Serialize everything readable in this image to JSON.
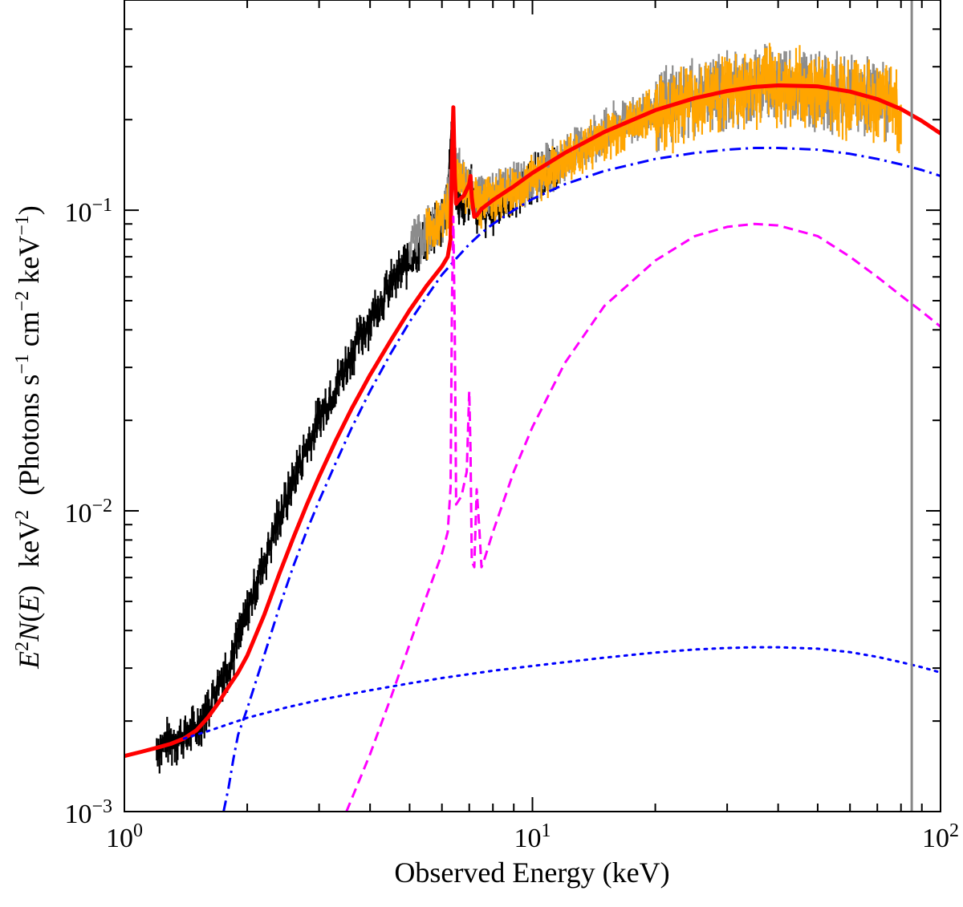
{
  "chart_data": {
    "type": "line",
    "scale": {
      "x": "log",
      "y": "log"
    },
    "xlim": [
      1,
      100
    ],
    "ylim": [
      0.001,
      0.5
    ],
    "xlabel": "Observed Energy   (keV)",
    "ylabel": {
      "E": "E",
      "N": "N",
      "exp2": "2",
      "open_paren": "(",
      "close_paren": ")",
      "unit": "keV",
      "rest_prefix": "(Photons s",
      "exp_m1": "−1",
      "cm": " cm",
      "exp_m2": "−2",
      "kev": " keV",
      "close": ")"
    },
    "x_ticks": [
      {
        "value": 1,
        "base": "10",
        "exp": "0"
      },
      {
        "value": 10,
        "base": "10",
        "exp": "1"
      },
      {
        "value": 100,
        "base": "10",
        "exp": "2"
      }
    ],
    "y_ticks": [
      {
        "value": 0.001,
        "base": "10",
        "exp": "−3"
      },
      {
        "value": 0.01,
        "base": "10",
        "exp": "−2"
      },
      {
        "value": 0.1,
        "base": "10",
        "exp": "−1"
      }
    ],
    "vertical_line": {
      "x": 85,
      "color": "#888888"
    },
    "series": [
      {
        "name": "data-soft (black)",
        "kind": "data",
        "color": "#000000",
        "x": [
          1.2,
          1.25,
          1.3,
          1.35,
          1.4,
          1.45,
          1.5,
          1.55,
          1.6,
          1.65,
          1.7,
          1.75,
          1.8,
          1.85,
          1.9,
          1.95,
          2.0,
          2.1,
          2.2,
          2.3,
          2.4,
          2.5,
          2.6,
          2.7,
          2.8,
          2.9,
          3.0,
          3.2,
          3.4,
          3.6,
          3.8,
          4.0,
          4.3,
          4.6,
          5.0,
          5.3,
          5.6,
          5.9,
          6.1,
          6.3,
          6.4,
          6.5,
          6.6,
          6.8,
          7.0,
          7.1,
          7.3,
          7.6,
          8.0,
          8.5,
          9.0,
          9.5,
          10.0,
          10.5,
          11.0,
          11.5
        ],
        "y": [
          0.00162,
          0.00168,
          0.00172,
          0.00176,
          0.00178,
          0.00185,
          0.0019,
          0.00205,
          0.0022,
          0.00245,
          0.0027,
          0.0029,
          0.0031,
          0.0034,
          0.0038,
          0.0041,
          0.0046,
          0.0057,
          0.0068,
          0.0082,
          0.0096,
          0.011,
          0.0128,
          0.0146,
          0.0165,
          0.0182,
          0.0203,
          0.0243,
          0.0285,
          0.0335,
          0.0385,
          0.0438,
          0.0515,
          0.059,
          0.069,
          0.076,
          0.083,
          0.089,
          0.097,
          0.16,
          0.22,
          0.12,
          0.1,
          0.102,
          0.113,
          0.125,
          0.096,
          0.097,
          0.101,
          0.108,
          0.115,
          0.121,
          0.127,
          0.133,
          0.138,
          0.142
        ]
      },
      {
        "name": "data-hard-A (grey)",
        "kind": "data",
        "color": "#8c8c8c",
        "x": [
          5.0,
          5.5,
          6.0,
          6.5,
          7.0,
          7.5,
          8.0,
          9.0,
          10.0,
          11.0,
          12.0,
          13.0,
          15.0,
          17.0,
          20.0,
          23.0,
          26.0,
          30.0,
          35.0,
          40.0,
          45.0,
          50.0,
          55.0,
          60.0,
          65.0,
          70.0,
          75.0
        ],
        "y": [
          0.078,
          0.085,
          0.093,
          0.14,
          0.12,
          0.11,
          0.113,
          0.121,
          0.13,
          0.14,
          0.151,
          0.163,
          0.182,
          0.2,
          0.218,
          0.232,
          0.244,
          0.255,
          0.263,
          0.266,
          0.263,
          0.258,
          0.252,
          0.246,
          0.24,
          0.236,
          0.23
        ]
      },
      {
        "name": "data-hard-B (orange)",
        "kind": "data",
        "color": "#ffa500",
        "x": [
          5.5,
          6.0,
          6.5,
          7.0,
          7.5,
          8.0,
          9.0,
          10.0,
          11.0,
          12.0,
          13.0,
          15.0,
          17.0,
          20.0,
          23.0,
          26.0,
          30.0,
          35.0,
          40.0,
          45.0,
          50.0,
          55.0,
          60.0,
          65.0,
          70.0,
          75.0,
          80.0
        ],
        "y": [
          0.085,
          0.091,
          0.13,
          0.116,
          0.108,
          0.111,
          0.118,
          0.126,
          0.136,
          0.146,
          0.157,
          0.176,
          0.193,
          0.212,
          0.228,
          0.24,
          0.252,
          0.26,
          0.263,
          0.26,
          0.255,
          0.25,
          0.244,
          0.238,
          0.232,
          0.225,
          0.22
        ]
      },
      {
        "name": "total model (red)",
        "kind": "model",
        "style": "solid",
        "color": "#ff0000",
        "x": [
          1.0,
          1.1,
          1.2,
          1.3,
          1.4,
          1.5,
          1.6,
          1.7,
          1.8,
          1.9,
          2.0,
          2.2,
          2.4,
          2.6,
          2.8,
          3.0,
          3.3,
          3.6,
          4.0,
          4.5,
          5.0,
          5.5,
          6.0,
          6.2,
          6.3,
          6.35,
          6.4,
          6.45,
          6.5,
          6.6,
          6.8,
          7.0,
          7.05,
          7.1,
          7.2,
          7.3,
          7.5,
          8.0,
          9.0,
          10.0,
          12.0,
          15.0,
          20.0,
          25.0,
          30.0,
          35.0,
          40.0,
          50.0,
          60.0,
          70.0,
          80.0,
          90.0,
          100.0
        ],
        "y": [
          0.00153,
          0.00158,
          0.00163,
          0.00168,
          0.00175,
          0.00186,
          0.00205,
          0.0023,
          0.0026,
          0.0029,
          0.0033,
          0.0045,
          0.0062,
          0.0082,
          0.0105,
          0.013,
          0.0172,
          0.0218,
          0.0283,
          0.037,
          0.0465,
          0.056,
          0.065,
          0.07,
          0.08,
          0.15,
          0.22,
          0.13,
          0.105,
          0.108,
          0.112,
          0.122,
          0.13,
          0.11,
          0.095,
          0.096,
          0.101,
          0.108,
          0.12,
          0.133,
          0.155,
          0.182,
          0.215,
          0.236,
          0.249,
          0.257,
          0.26,
          0.258,
          0.248,
          0.234,
          0.217,
          0.198,
          0.18
        ]
      },
      {
        "name": "primary power law (blue dash-dot)",
        "kind": "model",
        "style": "dashdot",
        "color": "#0000ff",
        "x": [
          1.75,
          1.8,
          1.85,
          1.9,
          2.0,
          2.2,
          2.4,
          2.6,
          2.8,
          3.0,
          3.3,
          3.6,
          4.0,
          4.5,
          5.0,
          5.5,
          6.0,
          6.5,
          7.0,
          7.5,
          8.0,
          9.0,
          10.0,
          12.0,
          15.0,
          20.0,
          25.0,
          30.0,
          35.0,
          40.0,
          50.0,
          60.0,
          70.0,
          80.0,
          90.0,
          100.0
        ],
        "y": [
          0.001,
          0.0012,
          0.0015,
          0.0018,
          0.0022,
          0.0033,
          0.0048,
          0.0066,
          0.0086,
          0.0108,
          0.0145,
          0.0188,
          0.025,
          0.0335,
          0.0425,
          0.0515,
          0.061,
          0.069,
          0.077,
          0.084,
          0.09,
          0.1,
          0.109,
          0.122,
          0.135,
          0.148,
          0.155,
          0.159,
          0.161,
          0.161,
          0.159,
          0.154,
          0.148,
          0.142,
          0.136,
          0.13
        ]
      },
      {
        "name": "reflection (magenta dashed)",
        "kind": "model",
        "style": "dashed",
        "color": "#ff00ff",
        "x": [
          3.5,
          4.0,
          4.5,
          5.0,
          5.5,
          6.0,
          6.2,
          6.3,
          6.35,
          6.4,
          6.45,
          6.5,
          6.7,
          6.9,
          7.0,
          7.05,
          7.1,
          7.2,
          7.3,
          7.4,
          7.5,
          7.6,
          8.0,
          9.0,
          10.0,
          12.0,
          15.0,
          20.0,
          25.0,
          30.0,
          35.0,
          40.0,
          50.0,
          60.0,
          70.0,
          80.0,
          90.0,
          100.0
        ],
        "y": [
          0.001,
          0.00155,
          0.0024,
          0.0036,
          0.0052,
          0.0072,
          0.0085,
          0.012,
          0.05,
          0.095,
          0.04,
          0.0105,
          0.0112,
          0.0135,
          0.025,
          0.016,
          0.0068,
          0.0065,
          0.0118,
          0.009,
          0.0065,
          0.0068,
          0.0085,
          0.0135,
          0.019,
          0.031,
          0.048,
          0.068,
          0.082,
          0.088,
          0.09,
          0.089,
          0.082,
          0.07,
          0.06,
          0.052,
          0.046,
          0.041
        ]
      },
      {
        "name": "scattered component (blue dotted)",
        "kind": "model",
        "style": "dotted",
        "color": "#0000ff",
        "x": [
          1.4,
          1.6,
          2.0,
          2.5,
          3.0,
          4.0,
          5.0,
          6.0,
          8.0,
          10.0,
          15.0,
          20.0,
          25.0,
          30.0,
          35.0,
          40.0,
          50.0,
          60.0,
          70.0,
          80.0,
          90.0,
          100.0
        ],
        "y": [
          0.00175,
          0.00185,
          0.00205,
          0.00222,
          0.00235,
          0.00253,
          0.00267,
          0.00278,
          0.00294,
          0.00305,
          0.00325,
          0.00338,
          0.00346,
          0.0035,
          0.00352,
          0.00352,
          0.00348,
          0.00339,
          0.00327,
          0.00314,
          0.00302,
          0.0029
        ]
      }
    ]
  }
}
